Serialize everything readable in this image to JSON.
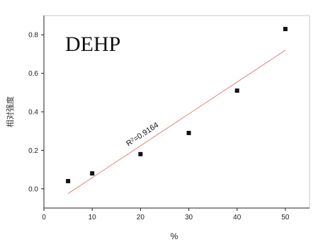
{
  "chart_data": {
    "type": "scatter",
    "title": "DEHP",
    "xlabel": "%",
    "ylabel": "相对强度",
    "xlim": [
      0,
      55
    ],
    "ylim": [
      -0.1,
      0.9
    ],
    "x_ticks": [
      0,
      10,
      20,
      30,
      40,
      50
    ],
    "y_ticks": [
      0.0,
      0.2,
      0.4,
      0.6,
      0.8
    ],
    "x_tick_labels": [
      "0",
      "10",
      "20",
      "30",
      "40",
      "50"
    ],
    "y_tick_labels": [
      "0.0",
      "0.2",
      "0.4",
      "0.6",
      "0.8"
    ],
    "grid": false,
    "series": [
      {
        "x": [
          5,
          10,
          20,
          30,
          40,
          50
        ],
        "values": [
          0.04,
          0.08,
          0.18,
          0.29,
          0.51,
          0.83
        ],
        "color": "#111111"
      }
    ],
    "fit_line": {
      "x": [
        5,
        50
      ],
      "values": [
        -0.025,
        0.72
      ],
      "color": "#e88080"
    },
    "annotation": {
      "superscript": "2",
      "base": "R",
      "rest": "=0.9164"
    }
  }
}
